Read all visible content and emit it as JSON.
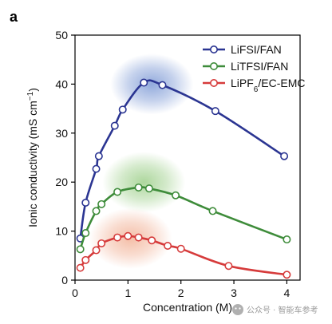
{
  "figure": {
    "panel_label": "a",
    "watermark": "公众号 · 智能车参考"
  },
  "chart_data": {
    "type": "line",
    "title": "",
    "xlabel": "Concentration (M)",
    "ylabel_main": "Ionic conductivity (mS cm",
    "ylabel_sup": "−1",
    "ylabel_tail": ")",
    "xlim": [
      0,
      4.25
    ],
    "ylim": [
      0,
      50
    ],
    "xticks": [
      0,
      1,
      2,
      3,
      4
    ],
    "yticks": [
      0,
      10,
      20,
      30,
      40,
      50
    ],
    "grid": false,
    "legend_position": "top-right",
    "series": [
      {
        "name": "LiFSI/FAN",
        "legend_parts": [
          {
            "text": "LiFSI/FAN",
            "sub": false
          }
        ],
        "color": "#2b3592",
        "halo_color": "#7f9bd6",
        "halo_center": [
          1.45,
          40
        ],
        "x": [
          0.1,
          0.2,
          0.4,
          0.45,
          0.75,
          0.9,
          1.3,
          1.65,
          2.65,
          3.95
        ],
        "y": [
          8.5,
          15.8,
          22.7,
          25.3,
          31.5,
          34.8,
          40.3,
          39.8,
          34.5,
          25.3
        ]
      },
      {
        "name": "LiTFSI/FAN",
        "legend_parts": [
          {
            "text": "LiTFSI/FAN",
            "sub": false
          }
        ],
        "color": "#3e8c3a",
        "halo_color": "#9fd08c",
        "halo_center": [
          1.3,
          20
        ],
        "x": [
          0.1,
          0.2,
          0.4,
          0.5,
          0.8,
          1.2,
          1.4,
          1.9,
          2.6,
          4.0
        ],
        "y": [
          6.3,
          9.6,
          14.1,
          15.5,
          18.0,
          18.9,
          18.7,
          17.3,
          14.1,
          8.3
        ]
      },
      {
        "name": "LiPF6/EC-EMC",
        "legend_parts": [
          {
            "text": "LiPF",
            "sub": false
          },
          {
            "text": "6",
            "sub": true
          },
          {
            "text": "/EC-EMC",
            "sub": false
          }
        ],
        "color": "#d63b3b",
        "halo_color": "#f2b398",
        "halo_center": [
          1.05,
          8.5
        ],
        "x": [
          0.1,
          0.2,
          0.4,
          0.5,
          0.8,
          1.0,
          1.2,
          1.45,
          1.75,
          2.0,
          2.9,
          4.0
        ],
        "y": [
          2.5,
          4.1,
          6.1,
          7.5,
          8.7,
          9.0,
          8.7,
          8.1,
          7.0,
          6.4,
          2.9,
          1.1
        ]
      }
    ]
  }
}
